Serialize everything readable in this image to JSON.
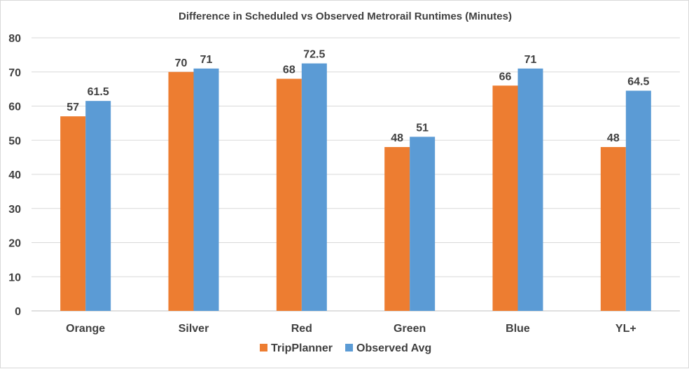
{
  "chart_data": {
    "type": "bar",
    "title": "Difference in Scheduled vs Observed Metrorail Runtimes (Minutes)",
    "categories": [
      "Orange",
      "Silver",
      "Red",
      "Green",
      "Blue",
      "YL+"
    ],
    "series": [
      {
        "name": "TripPlanner",
        "color": "#ed7d31",
        "values": [
          57,
          70,
          68,
          48,
          66,
          48
        ],
        "labels": [
          "57",
          "70",
          "68",
          "48",
          "66",
          "48"
        ]
      },
      {
        "name": "Observed Avg",
        "color": "#5b9bd5",
        "values": [
          61.5,
          71,
          72.5,
          51,
          71,
          64.5
        ],
        "labels": [
          "61.5",
          "71",
          "72.5",
          "51",
          "71",
          "64.5"
        ]
      }
    ],
    "ylim": [
      0,
      80
    ],
    "yticks": [
      "0",
      "10",
      "20",
      "30",
      "40",
      "50",
      "60",
      "70",
      "80"
    ],
    "grid": true,
    "legend_position": "bottom"
  }
}
